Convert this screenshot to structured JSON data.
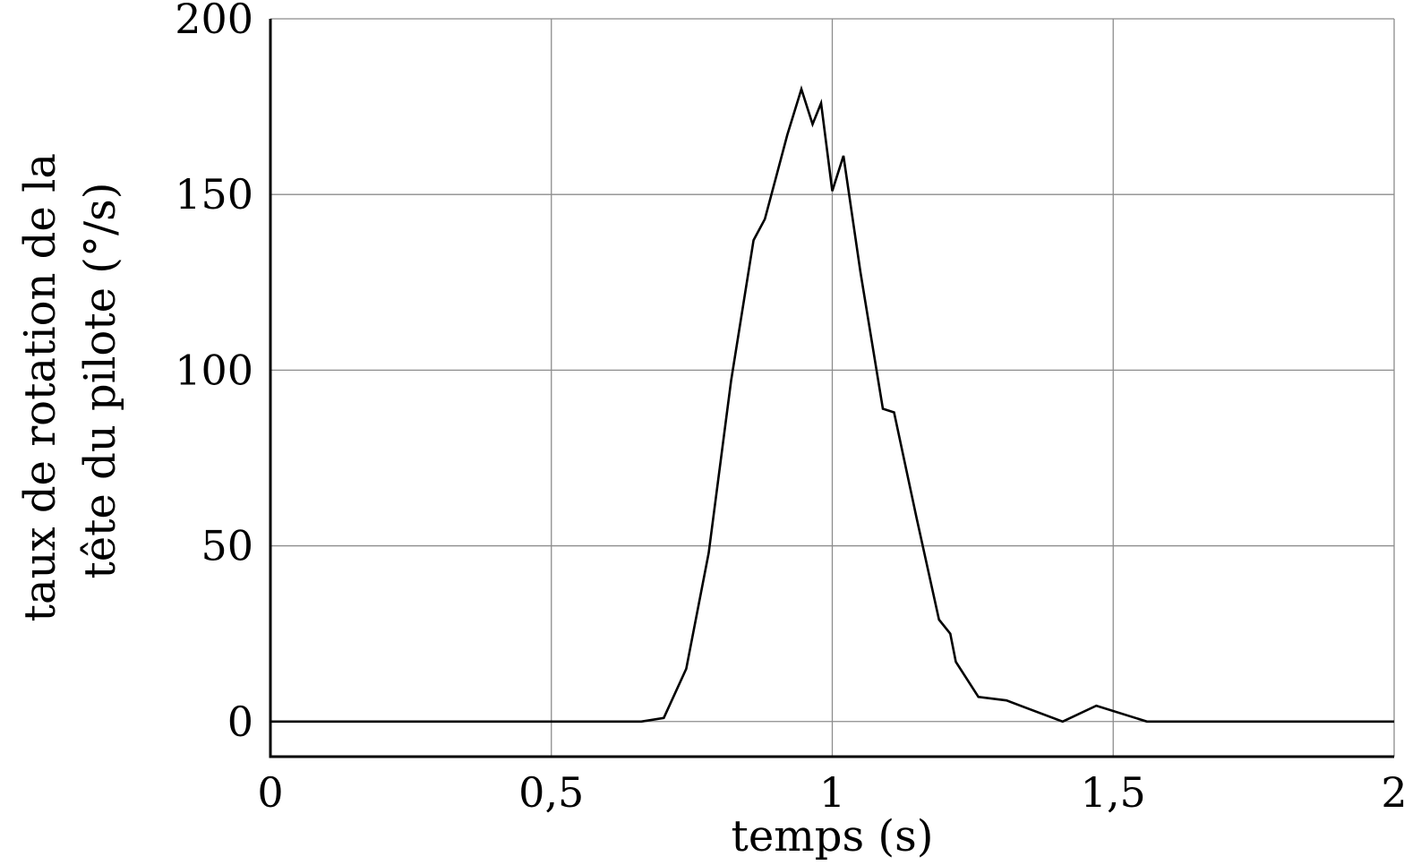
{
  "chart_data": {
    "type": "line",
    "title": "",
    "xlabel": "temps (s)",
    "ylabel_lines": [
      "taux de rotation de la",
      "tête du pilote (°/s)"
    ],
    "xlim": [
      0,
      2
    ],
    "ylim": [
      -10,
      200
    ],
    "grid": true,
    "x_ticks": [
      0,
      0.5,
      1,
      1.5,
      2
    ],
    "x_tick_labels": [
      "0",
      "0,5",
      "1",
      "1,5",
      "2"
    ],
    "y_ticks": [
      0,
      50,
      100,
      150,
      200
    ],
    "y_tick_labels": [
      "0",
      "50",
      "100",
      "150",
      "200"
    ],
    "series": [
      {
        "color": "#000000",
        "x": [
          0,
          0.66,
          0.7,
          0.74,
          0.78,
          0.82,
          0.86,
          0.88,
          0.9,
          0.92,
          0.945,
          0.965,
          0.98,
          1.0,
          1.02,
          1.05,
          1.09,
          1.11,
          1.15,
          1.19,
          1.21,
          1.22,
          1.26,
          1.31,
          1.41,
          1.47,
          1.56,
          2.0
        ],
        "y": [
          0,
          0,
          1,
          15,
          48,
          97,
          137,
          143,
          155,
          167,
          180,
          170,
          176,
          151,
          161,
          128,
          89,
          88,
          58,
          29,
          25,
          17,
          7,
          6,
          0,
          4.5,
          0,
          0
        ]
      }
    ]
  }
}
